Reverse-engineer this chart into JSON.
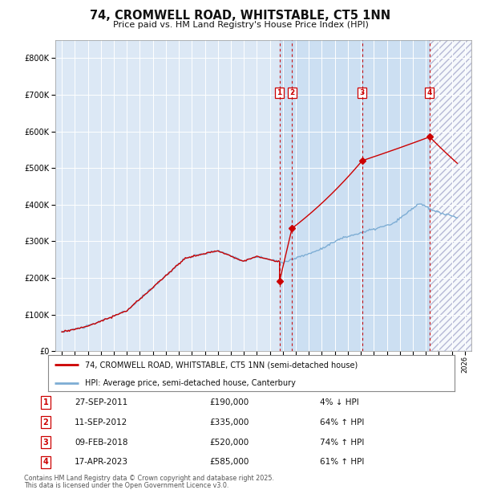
{
  "title": "74, CROMWELL ROAD, WHITSTABLE, CT5 1NN",
  "subtitle": "Price paid vs. HM Land Registry's House Price Index (HPI)",
  "legend_line1": "74, CROMWELL ROAD, WHITSTABLE, CT5 1NN (semi-detached house)",
  "legend_line2": "HPI: Average price, semi-detached house, Canterbury",
  "footer1": "Contains HM Land Registry data © Crown copyright and database right 2025.",
  "footer2": "This data is licensed under the Open Government Licence v3.0.",
  "transactions": [
    {
      "num": 1,
      "date": "27-SEP-2011",
      "price": 190000,
      "pct": "4%",
      "dir": "↓"
    },
    {
      "num": 2,
      "date": "11-SEP-2012",
      "price": 335000,
      "pct": "64%",
      "dir": "↑"
    },
    {
      "num": 3,
      "date": "09-FEB-2018",
      "price": 520000,
      "pct": "74%",
      "dir": "↑"
    },
    {
      "num": 4,
      "date": "17-APR-2023",
      "price": 585000,
      "pct": "61%",
      "dir": "↑"
    }
  ],
  "transaction_years": [
    2011.74,
    2012.7,
    2018.1,
    2023.29
  ],
  "transaction_prices": [
    190000,
    335000,
    520000,
    585000
  ],
  "background_color": "#ffffff",
  "plot_bg_color": "#dce8f5",
  "grid_color": "#ffffff",
  "red_line_color": "#cc0000",
  "blue_line_color": "#7dadd4",
  "dashed_line_color": "#cc0000",
  "marker_box_color": "#cc0000",
  "ylim": [
    0,
    850000
  ],
  "yticks": [
    0,
    100000,
    200000,
    300000,
    400000,
    500000,
    600000,
    700000,
    800000
  ],
  "xlim_start": 1994.5,
  "xlim_end": 2026.5
}
